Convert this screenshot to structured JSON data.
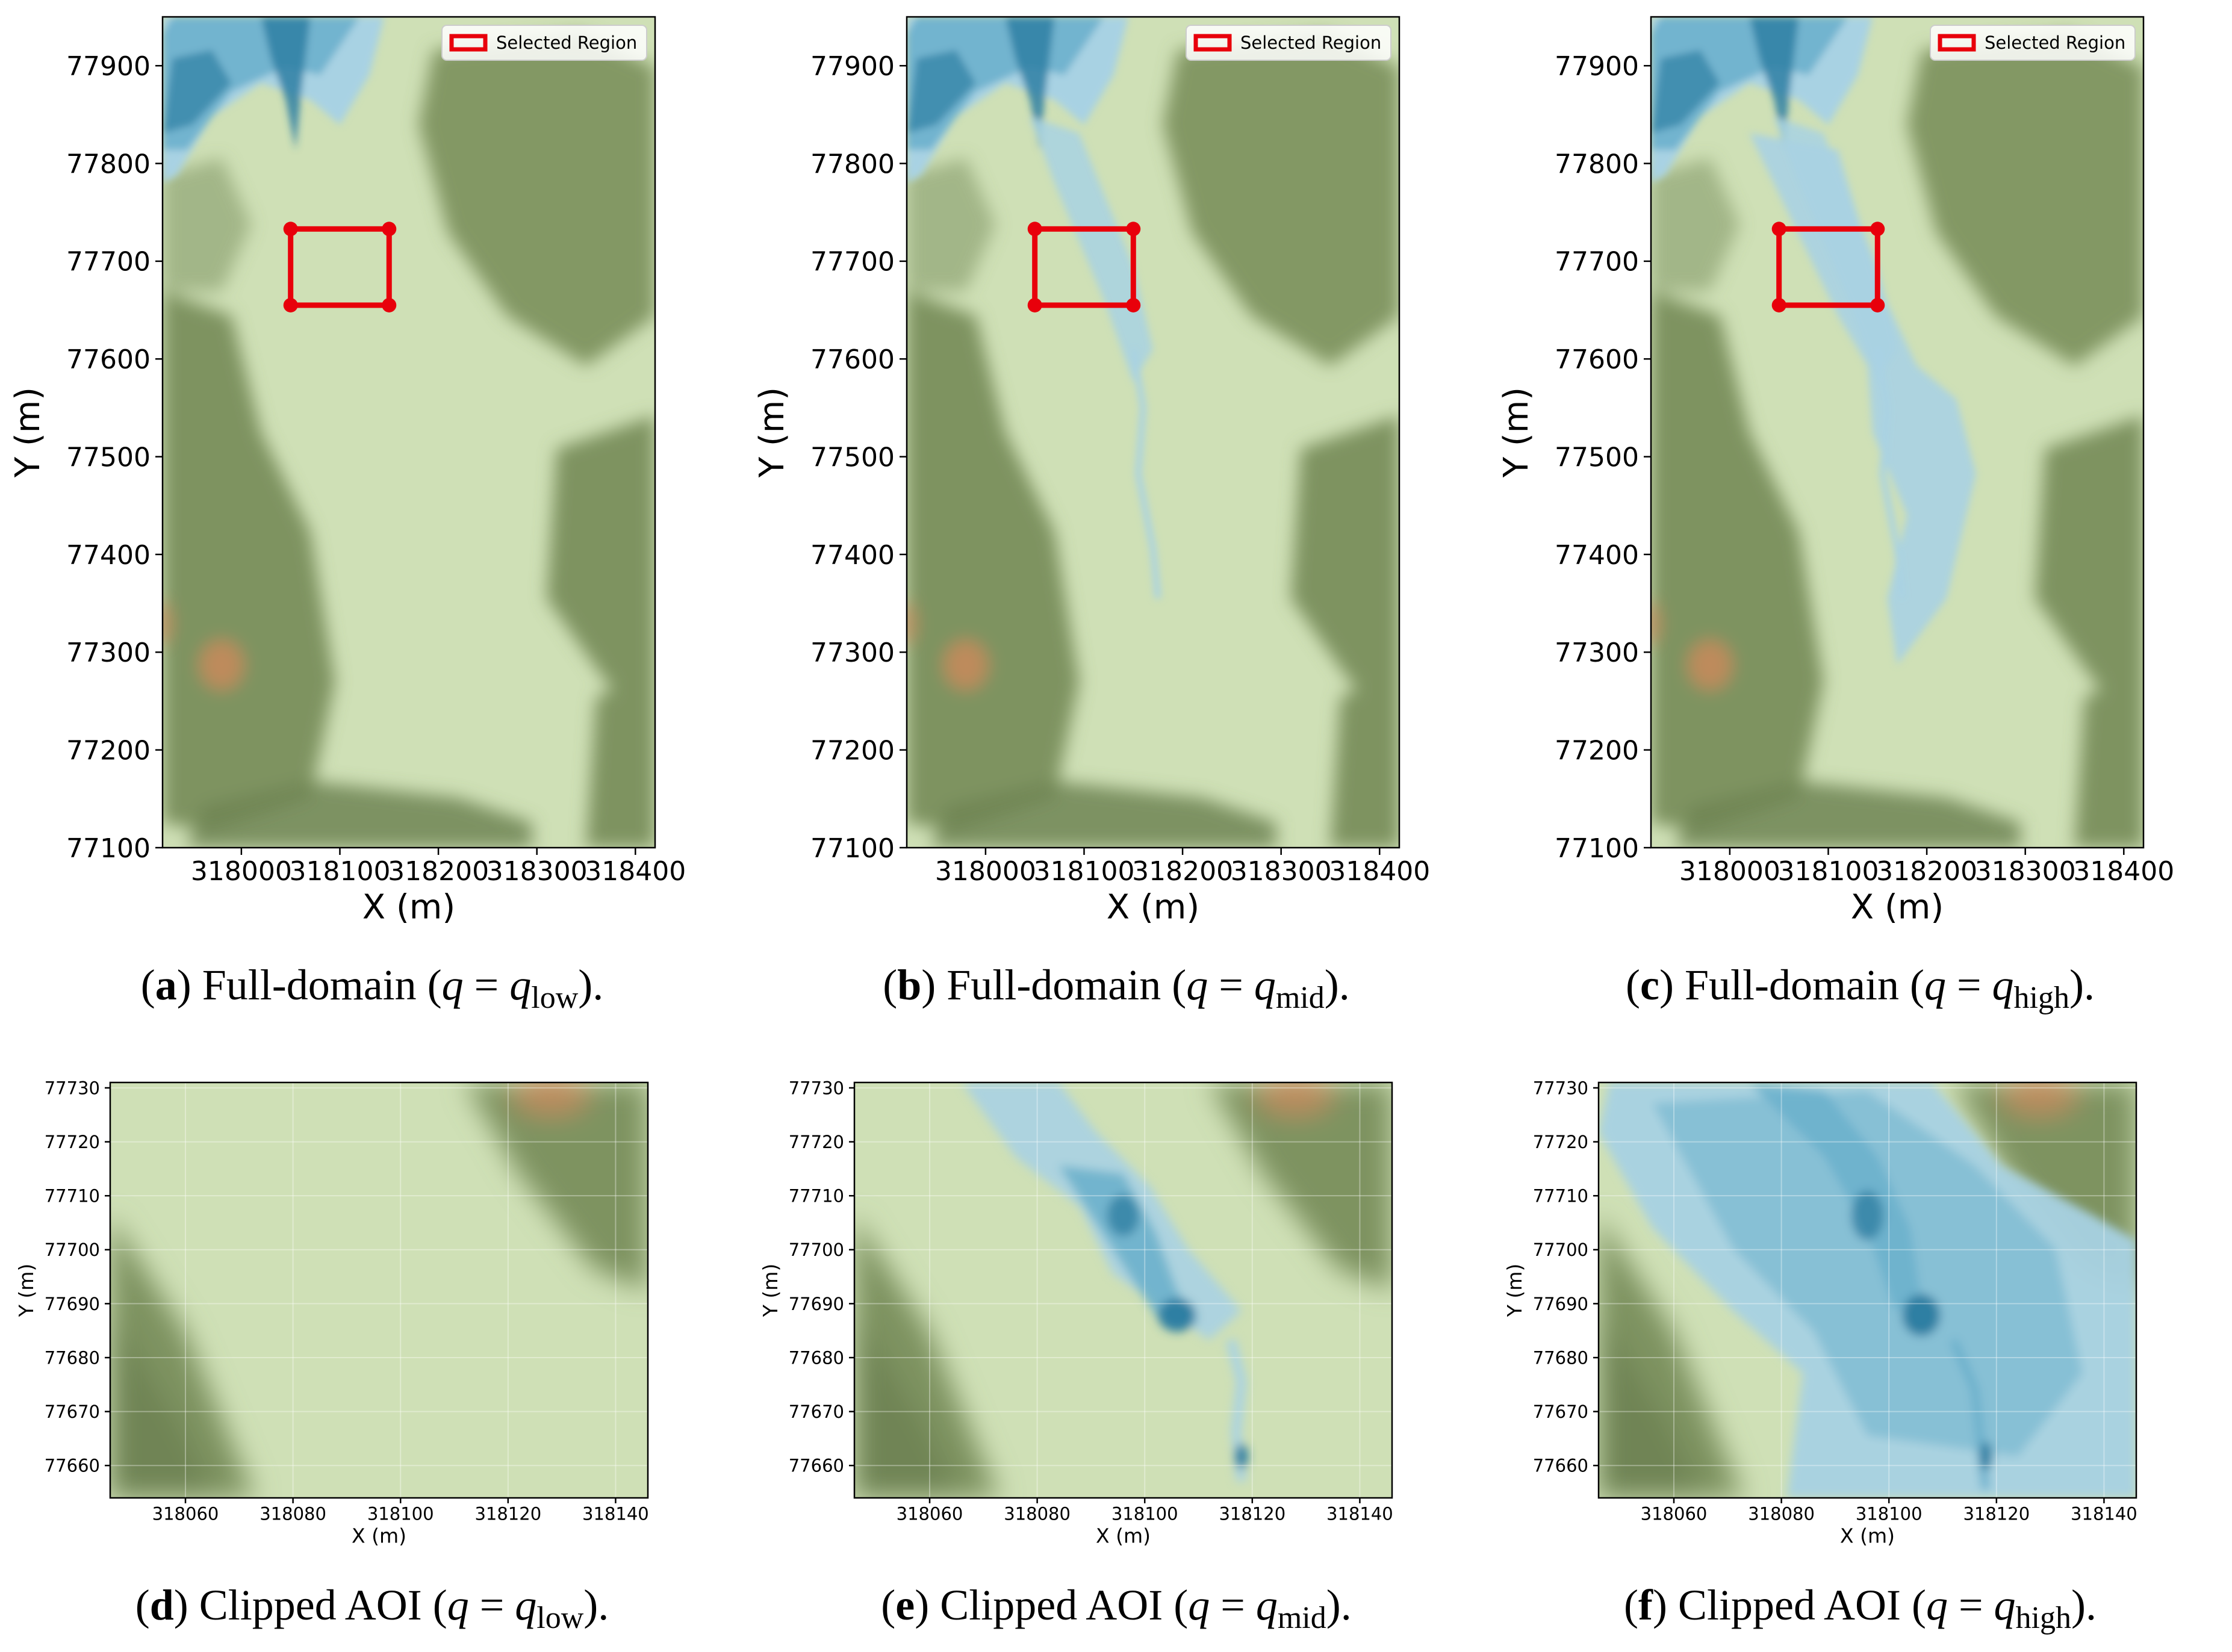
{
  "figure": {
    "legend_label": "Selected Region",
    "captions": [
      {
        "letter": "a",
        "text": "Full-domain",
        "sub": "low"
      },
      {
        "letter": "b",
        "text": "Full-domain",
        "sub": "mid"
      },
      {
        "letter": "c",
        "text": "Full-domain",
        "sub": "high"
      },
      {
        "letter": "d",
        "text": "Clipped AOI",
        "sub": "low"
      },
      {
        "letter": "e",
        "text": "Clipped AOI",
        "sub": "mid"
      },
      {
        "letter": "f",
        "text": "Clipped AOI",
        "sub": "high"
      }
    ],
    "colors": {
      "plain": "#cfe0b6",
      "hill": "#7e9360",
      "hill_dark": "#6f8454",
      "peak": "#c98a5c",
      "water_light": "#a8d2e3",
      "water_mid": "#6bb0cc",
      "water_deep": "#2f7fa3",
      "selected_region": "#e8000b"
    }
  },
  "chart_data": [
    {
      "type": "heatmap",
      "panel": "a",
      "flow_level": "low",
      "xlabel": "X (m)",
      "ylabel": "Y (m)",
      "xlim": [
        317920,
        318420
      ],
      "ylim": [
        77100,
        77950
      ],
      "xticks": [
        318000,
        318100,
        318200,
        318300,
        318400
      ],
      "yticks": [
        77100,
        77200,
        77300,
        77400,
        77500,
        77600,
        77700,
        77800,
        77900
      ],
      "legend": {
        "entries": [
          "Selected Region"
        ],
        "position": "top-right"
      },
      "selected_region": {
        "x": [
          318050,
          318150
        ],
        "y": [
          77655,
          77733
        ]
      }
    },
    {
      "type": "heatmap",
      "panel": "b",
      "flow_level": "mid",
      "xlabel": "X (m)",
      "ylabel": "Y (m)",
      "xlim": [
        317920,
        318420
      ],
      "ylim": [
        77100,
        77950
      ],
      "xticks": [
        318000,
        318100,
        318200,
        318300,
        318400
      ],
      "yticks": [
        77100,
        77200,
        77300,
        77400,
        77500,
        77600,
        77700,
        77800,
        77900
      ],
      "legend": {
        "entries": [
          "Selected Region"
        ],
        "position": "top-right"
      },
      "selected_region": {
        "x": [
          318050,
          318150
        ],
        "y": [
          77655,
          77733
        ]
      }
    },
    {
      "type": "heatmap",
      "panel": "c",
      "flow_level": "high",
      "xlabel": "X (m)",
      "ylabel": "Y (m)",
      "xlim": [
        317920,
        318420
      ],
      "ylim": [
        77100,
        77950
      ],
      "xticks": [
        318000,
        318100,
        318200,
        318300,
        318400
      ],
      "yticks": [
        77100,
        77200,
        77300,
        77400,
        77500,
        77600,
        77700,
        77800,
        77900
      ],
      "legend": {
        "entries": [
          "Selected Region"
        ],
        "position": "top-right"
      },
      "selected_region": {
        "x": [
          318050,
          318150
        ],
        "y": [
          77655,
          77733
        ]
      }
    },
    {
      "type": "heatmap",
      "panel": "d",
      "flow_level": "low",
      "xlabel": "X (m)",
      "ylabel": "Y (m)",
      "xlim": [
        318046,
        318146
      ],
      "ylim": [
        77654,
        77731
      ],
      "xticks": [
        318060,
        318080,
        318100,
        318120,
        318140
      ],
      "yticks": [
        77660,
        77670,
        77680,
        77690,
        77700,
        77710,
        77720,
        77730
      ],
      "grid": true
    },
    {
      "type": "heatmap",
      "panel": "e",
      "flow_level": "mid",
      "xlabel": "X (m)",
      "ylabel": "Y (m)",
      "xlim": [
        318046,
        318146
      ],
      "ylim": [
        77654,
        77731
      ],
      "xticks": [
        318060,
        318080,
        318100,
        318120,
        318140
      ],
      "yticks": [
        77660,
        77670,
        77680,
        77690,
        77700,
        77710,
        77720,
        77730
      ],
      "grid": true
    },
    {
      "type": "heatmap",
      "panel": "f",
      "flow_level": "high",
      "xlabel": "X (m)",
      "ylabel": "Y (m)",
      "xlim": [
        318046,
        318146
      ],
      "ylim": [
        77654,
        77731
      ],
      "xticks": [
        318060,
        318080,
        318100,
        318120,
        318140
      ],
      "yticks": [
        77660,
        77670,
        77680,
        77690,
        77700,
        77710,
        77720,
        77730
      ],
      "grid": true
    }
  ]
}
